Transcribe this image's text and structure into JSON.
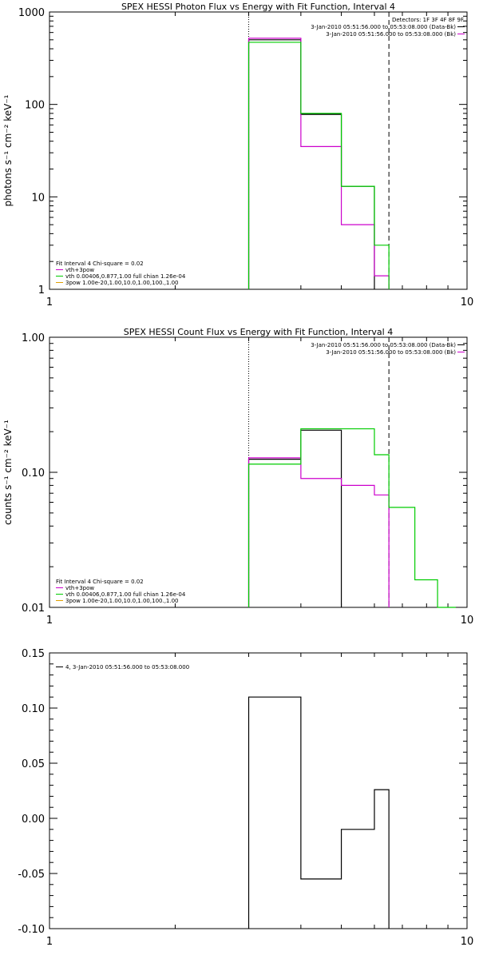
{
  "chart_data": [
    {
      "type": "line",
      "title": "SPEX HESSI Photon Flux vs Energy with Fit Function, Interval 4",
      "ylabel": "photons s⁻¹ cm⁻² keV⁻¹",
      "xlabel": "",
      "xscale": "log",
      "yscale": "log",
      "xlim": [
        1,
        10
      ],
      "ylim": [
        1,
        1000
      ],
      "xticks": [
        1,
        10
      ],
      "xtick_labels": [
        "1",
        "10"
      ],
      "yticks": [
        1,
        10,
        100,
        1000
      ],
      "ytick_labels": [
        "1",
        "10",
        "100",
        "1000"
      ],
      "vlines": [
        {
          "x": 3,
          "style": "dotted"
        },
        {
          "x": 6.5,
          "style": "dashed"
        }
      ],
      "legend_top_right": [
        {
          "text": "Detectors: 1F 3F 4F 8F 9F",
          "color": "#000000"
        },
        {
          "text": "3-Jan-2010 05:51:56.000 to 05:53:08.000 (Data-Bk)",
          "color": "#000000"
        },
        {
          "text": "3-Jan-2010 05:51:56.000 to 05:53:08.000 (Bk)",
          "color": "#cc00cc"
        }
      ],
      "legend_bottom_left": [
        {
          "text": "Fit Interval 4    Chi-square = 0.02",
          "color": "#000000"
        },
        {
          "text": "vth+3pow",
          "color": "#cc00cc"
        },
        {
          "text": "vth 0.00406,0.877,1.00   full chian 1.26e-04",
          "color": "#00cc00"
        },
        {
          "text": "3pow 1.00e-20,1.00,10.0,1.00,100.,1.00",
          "color": "#e0a000"
        }
      ],
      "series": [
        {
          "color": "#000000",
          "edges": [
            3,
            4,
            5,
            6
          ],
          "values": [
            500,
            78,
            13
          ]
        },
        {
          "color": "#cc00cc",
          "edges": [
            3,
            4,
            5,
            6,
            6.5
          ],
          "values": [
            520,
            35,
            5,
            1.4
          ]
        },
        {
          "color": "#00cc00",
          "edges": [
            3,
            4,
            5,
            6,
            6.5
          ],
          "values": [
            470,
            80,
            13,
            3
          ]
        }
      ]
    },
    {
      "type": "line",
      "title": "SPEX HESSI Count Flux vs Energy with Fit Function, Interval 4",
      "ylabel": "counts s⁻¹ cm⁻² keV⁻¹",
      "xlabel": "",
      "xscale": "log",
      "yscale": "log",
      "xlim": [
        1,
        10
      ],
      "ylim": [
        0.01,
        1.0
      ],
      "xticks": [
        1,
        10
      ],
      "xtick_labels": [
        "1",
        "10"
      ],
      "yticks": [
        0.01,
        0.1,
        1.0
      ],
      "ytick_labels": [
        "0.01",
        "0.10",
        "1.00"
      ],
      "vlines": [
        {
          "x": 3,
          "style": "dotted"
        },
        {
          "x": 6.5,
          "style": "dashed"
        }
      ],
      "legend_top_right": [
        {
          "text": "3-Jan-2010 05:51:56.000 to 05:53:08.000 (Data-Bk)",
          "color": "#000000"
        },
        {
          "text": "3-Jan-2010 05:51:56.000 to 05:53:08.000 (Bk)",
          "color": "#cc00cc"
        }
      ],
      "legend_bottom_left": [
        {
          "text": "Fit Interval 4    Chi-square = 0.02",
          "color": "#000000"
        },
        {
          "text": "vth+3pow",
          "color": "#cc00cc"
        },
        {
          "text": "vth 0.00406,0.877,1.00   full chian 1.26e-04",
          "color": "#00cc00"
        },
        {
          "text": "3pow 1.00e-20,1.00,10.0,1.00,100.,1.00",
          "color": "#e0a000"
        }
      ],
      "series": [
        {
          "color": "#000000",
          "edges": [
            3,
            4,
            5
          ],
          "values": [
            0.125,
            0.205
          ]
        },
        {
          "color": "#cc00cc",
          "edges": [
            3,
            4,
            5,
            6,
            6.5
          ],
          "values": [
            0.128,
            0.09,
            0.08,
            0.068
          ]
        },
        {
          "color": "#00cc00",
          "edges": [
            3,
            4,
            5,
            6,
            6.5,
            7.5,
            8.5,
            9.4
          ],
          "values": [
            0.115,
            0.21,
            0.21,
            0.135,
            0.055,
            0.016,
            0.008
          ]
        }
      ]
    },
    {
      "type": "line",
      "title": "",
      "ylabel": "",
      "xlabel": "",
      "xscale": "log",
      "yscale": "linear",
      "xlim": [
        1,
        10
      ],
      "ylim": [
        -0.1,
        0.15
      ],
      "xticks": [
        1,
        10
      ],
      "xtick_labels": [
        "1",
        "10"
      ],
      "yticks": [
        -0.1,
        -0.05,
        0.0,
        0.05,
        0.1,
        0.15
      ],
      "ytick_labels": [
        "-0.10",
        "-0.05",
        "0.00",
        "0.05",
        "0.10",
        "0.15"
      ],
      "vlines": [],
      "legend_top_left": [
        {
          "text": "4,  3-Jan-2010 05:51:56.000 to 05:53:08.000",
          "color": "#000000"
        }
      ],
      "series": [
        {
          "color": "#000000",
          "edges": [
            3,
            4,
            5,
            6,
            6.5
          ],
          "values": [
            0.11,
            -0.055,
            -0.01,
            0.026
          ]
        }
      ]
    }
  ]
}
